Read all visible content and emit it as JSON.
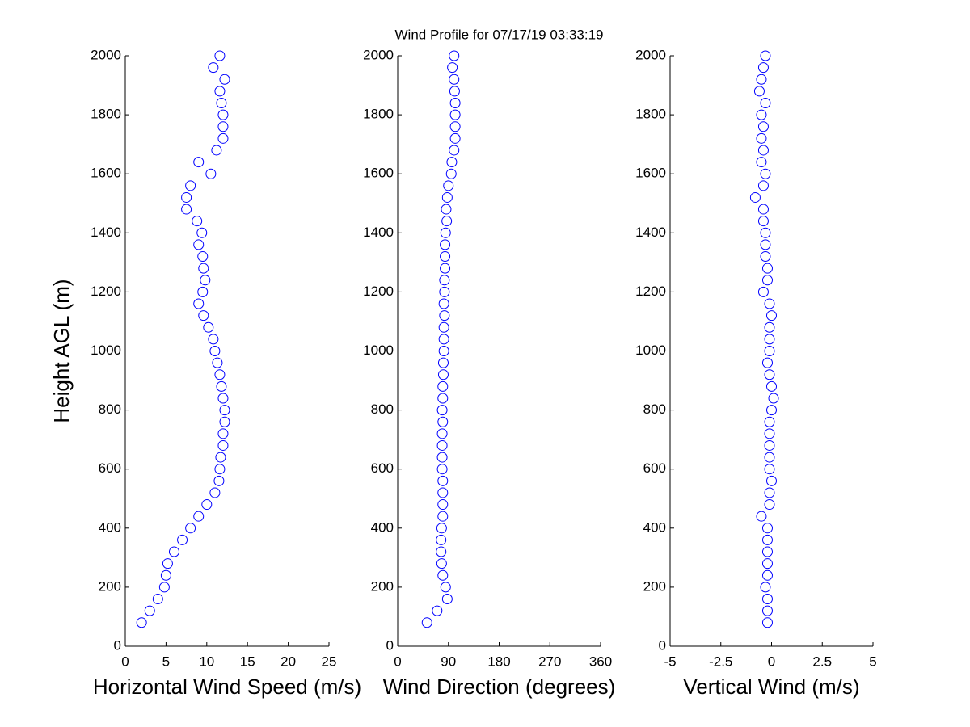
{
  "chart_data": [
    {
      "type": "scatter",
      "xlabel": "Horizontal Wind Speed (m/s)",
      "ylabel": "Height AGL (m)",
      "color": "#0000ff",
      "xlim": [
        0,
        25
      ],
      "xticks": [
        0,
        5,
        10,
        15,
        20,
        25
      ],
      "ylim": [
        0,
        2000
      ],
      "yticks": [
        0,
        200,
        400,
        600,
        800,
        1000,
        1200,
        1400,
        1600,
        1800,
        2000
      ],
      "x": [
        2.0,
        3.0,
        4.0,
        4.8,
        5.0,
        5.2,
        6.0,
        7.0,
        8.0,
        9.0,
        10.0,
        11.0,
        11.5,
        11.6,
        11.7,
        12.0,
        12.0,
        12.2,
        12.2,
        12.0,
        11.8,
        11.6,
        11.3,
        11.0,
        10.8,
        10.2,
        9.6,
        9.0,
        9.5,
        9.8,
        9.6,
        9.5,
        9.0,
        9.4,
        8.8,
        7.5,
        7.5,
        8.0,
        10.5,
        9.0,
        11.2,
        12.0,
        12.0,
        12.0,
        11.8,
        11.6,
        12.2,
        10.8,
        11.6
      ],
      "y": [
        80,
        120,
        160,
        200,
        240,
        280,
        320,
        360,
        400,
        440,
        480,
        520,
        560,
        600,
        640,
        680,
        720,
        760,
        800,
        840,
        880,
        920,
        960,
        1000,
        1040,
        1080,
        1120,
        1160,
        1200,
        1240,
        1280,
        1320,
        1360,
        1400,
        1440,
        1480,
        1520,
        1560,
        1600,
        1640,
        1680,
        1720,
        1760,
        1800,
        1840,
        1880,
        1920,
        1960,
        2000
      ]
    },
    {
      "type": "scatter",
      "title": "Wind Profile for  07/17/19 03:33:19",
      "xlabel": "Wind Direction (degrees)",
      "color": "#0000ff",
      "xlim": [
        0,
        360
      ],
      "xticks": [
        0,
        90,
        180,
        270,
        360
      ],
      "ylim": [
        0,
        2000
      ],
      "yticks": [
        0,
        200,
        400,
        600,
        800,
        1000,
        1200,
        1400,
        1600,
        1800,
        2000
      ],
      "x": [
        52,
        70,
        88,
        85,
        80,
        78,
        77,
        77,
        78,
        80,
        80,
        80,
        80,
        79,
        79,
        79,
        79,
        80,
        79,
        80,
        80,
        81,
        81,
        82,
        82,
        82,
        83,
        82,
        83,
        83,
        84,
        84,
        84,
        85,
        87,
        86,
        88,
        90,
        95,
        96,
        100,
        102,
        102,
        102,
        102,
        101,
        100,
        97,
        100
      ],
      "y": [
        80,
        120,
        160,
        200,
        240,
        280,
        320,
        360,
        400,
        440,
        480,
        520,
        560,
        600,
        640,
        680,
        720,
        760,
        800,
        840,
        880,
        920,
        960,
        1000,
        1040,
        1080,
        1120,
        1160,
        1200,
        1240,
        1280,
        1320,
        1360,
        1400,
        1440,
        1480,
        1520,
        1560,
        1600,
        1640,
        1680,
        1720,
        1760,
        1800,
        1840,
        1880,
        1920,
        1960,
        2000
      ]
    },
    {
      "type": "scatter",
      "xlabel": "Vertical Wind (m/s)",
      "color": "#0000ff",
      "xlim": [
        -5,
        5
      ],
      "xticks": [
        -5,
        -2.5,
        0,
        2.5,
        5
      ],
      "ylim": [
        0,
        2000
      ],
      "yticks": [
        0,
        200,
        400,
        600,
        800,
        1000,
        1200,
        1400,
        1600,
        1800,
        2000
      ],
      "x": [
        -0.2,
        -0.2,
        -0.2,
        -0.3,
        -0.2,
        -0.2,
        -0.2,
        -0.2,
        -0.2,
        -0.5,
        -0.1,
        -0.1,
        0.0,
        -0.1,
        -0.1,
        -0.1,
        -0.1,
        -0.1,
        0.0,
        0.1,
        0.0,
        -0.1,
        -0.2,
        -0.1,
        -0.1,
        -0.1,
        0.0,
        -0.1,
        -0.4,
        -0.2,
        -0.2,
        -0.3,
        -0.3,
        -0.3,
        -0.4,
        -0.4,
        -0.8,
        -0.4,
        -0.3,
        -0.5,
        -0.4,
        -0.5,
        -0.4,
        -0.5,
        -0.3,
        -0.6,
        -0.5,
        -0.4,
        -0.3
      ],
      "y": [
        80,
        120,
        160,
        200,
        240,
        280,
        320,
        360,
        400,
        440,
        480,
        520,
        560,
        600,
        640,
        680,
        720,
        760,
        800,
        840,
        880,
        920,
        960,
        1000,
        1040,
        1080,
        1120,
        1160,
        1200,
        1240,
        1280,
        1320,
        1360,
        1400,
        1440,
        1480,
        1520,
        1560,
        1600,
        1640,
        1680,
        1720,
        1760,
        1800,
        1840,
        1880,
        1920,
        1960,
        2000
      ]
    }
  ]
}
